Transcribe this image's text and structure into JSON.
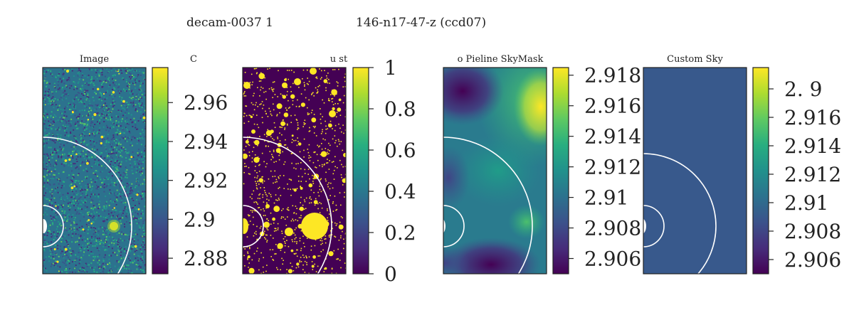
{
  "figure": {
    "suptitle_left": "decam-0037   1",
    "suptitle_right": "146-n17-47-z (ccd07)"
  },
  "chart_data": [
    {
      "type": "heatmap",
      "title": "Image",
      "colorbar_label": "C",
      "colormap": "viridis",
      "clim": [
        2.872,
        2.978
      ],
      "ticks": [
        2.88,
        2.9,
        2.92,
        2.94,
        2.96
      ],
      "tick_labels": [
        "2.88",
        "2.9",
        "2.92",
        "2.94",
        "2.96"
      ],
      "content": "noise-with-sources"
    },
    {
      "type": "heatmap",
      "title": "u  st",
      "colorbar_label": "",
      "colormap": "viridis",
      "clim": [
        0,
        1
      ],
      "ticks": [
        0,
        0.2,
        0.4,
        0.6,
        0.8,
        1
      ],
      "tick_labels": [
        "0",
        "0.2",
        "0.4",
        "0.6",
        "0.8",
        "1"
      ],
      "content": "binary-mask"
    },
    {
      "type": "heatmap",
      "title": "o Pieline SkyMask",
      "colorbar_label": "",
      "colormap": "viridis",
      "clim": [
        2.905,
        2.9185
      ],
      "ticks": [
        2.906,
        2.908,
        2.91,
        2.912,
        2.914,
        2.916,
        2.918
      ],
      "tick_labels": [
        "2.906",
        "2.908",
        "2.91",
        "2.912",
        "2.914",
        "2.916",
        "2.918"
      ],
      "content": "smooth-sky"
    },
    {
      "type": "heatmap",
      "title": "Custom Sky",
      "colorbar_label": "",
      "colormap": "viridis",
      "clim": [
        2.905,
        2.9195
      ],
      "ticks": [
        2.906,
        2.908,
        2.91,
        2.912,
        2.914,
        2.916,
        2.918
      ],
      "tick_labels": [
        "2.906",
        "2.908",
        "2.91",
        "2.912",
        "2.914",
        "2.916",
        "2.   9"
      ],
      "content": "constant",
      "constant_value": 2.909
    }
  ],
  "colors": {
    "viridis_dark": "#440154",
    "viridis_yellow": "#fde725",
    "custom_sky_fill": "#355f8d",
    "ring": "#ffffff"
  }
}
